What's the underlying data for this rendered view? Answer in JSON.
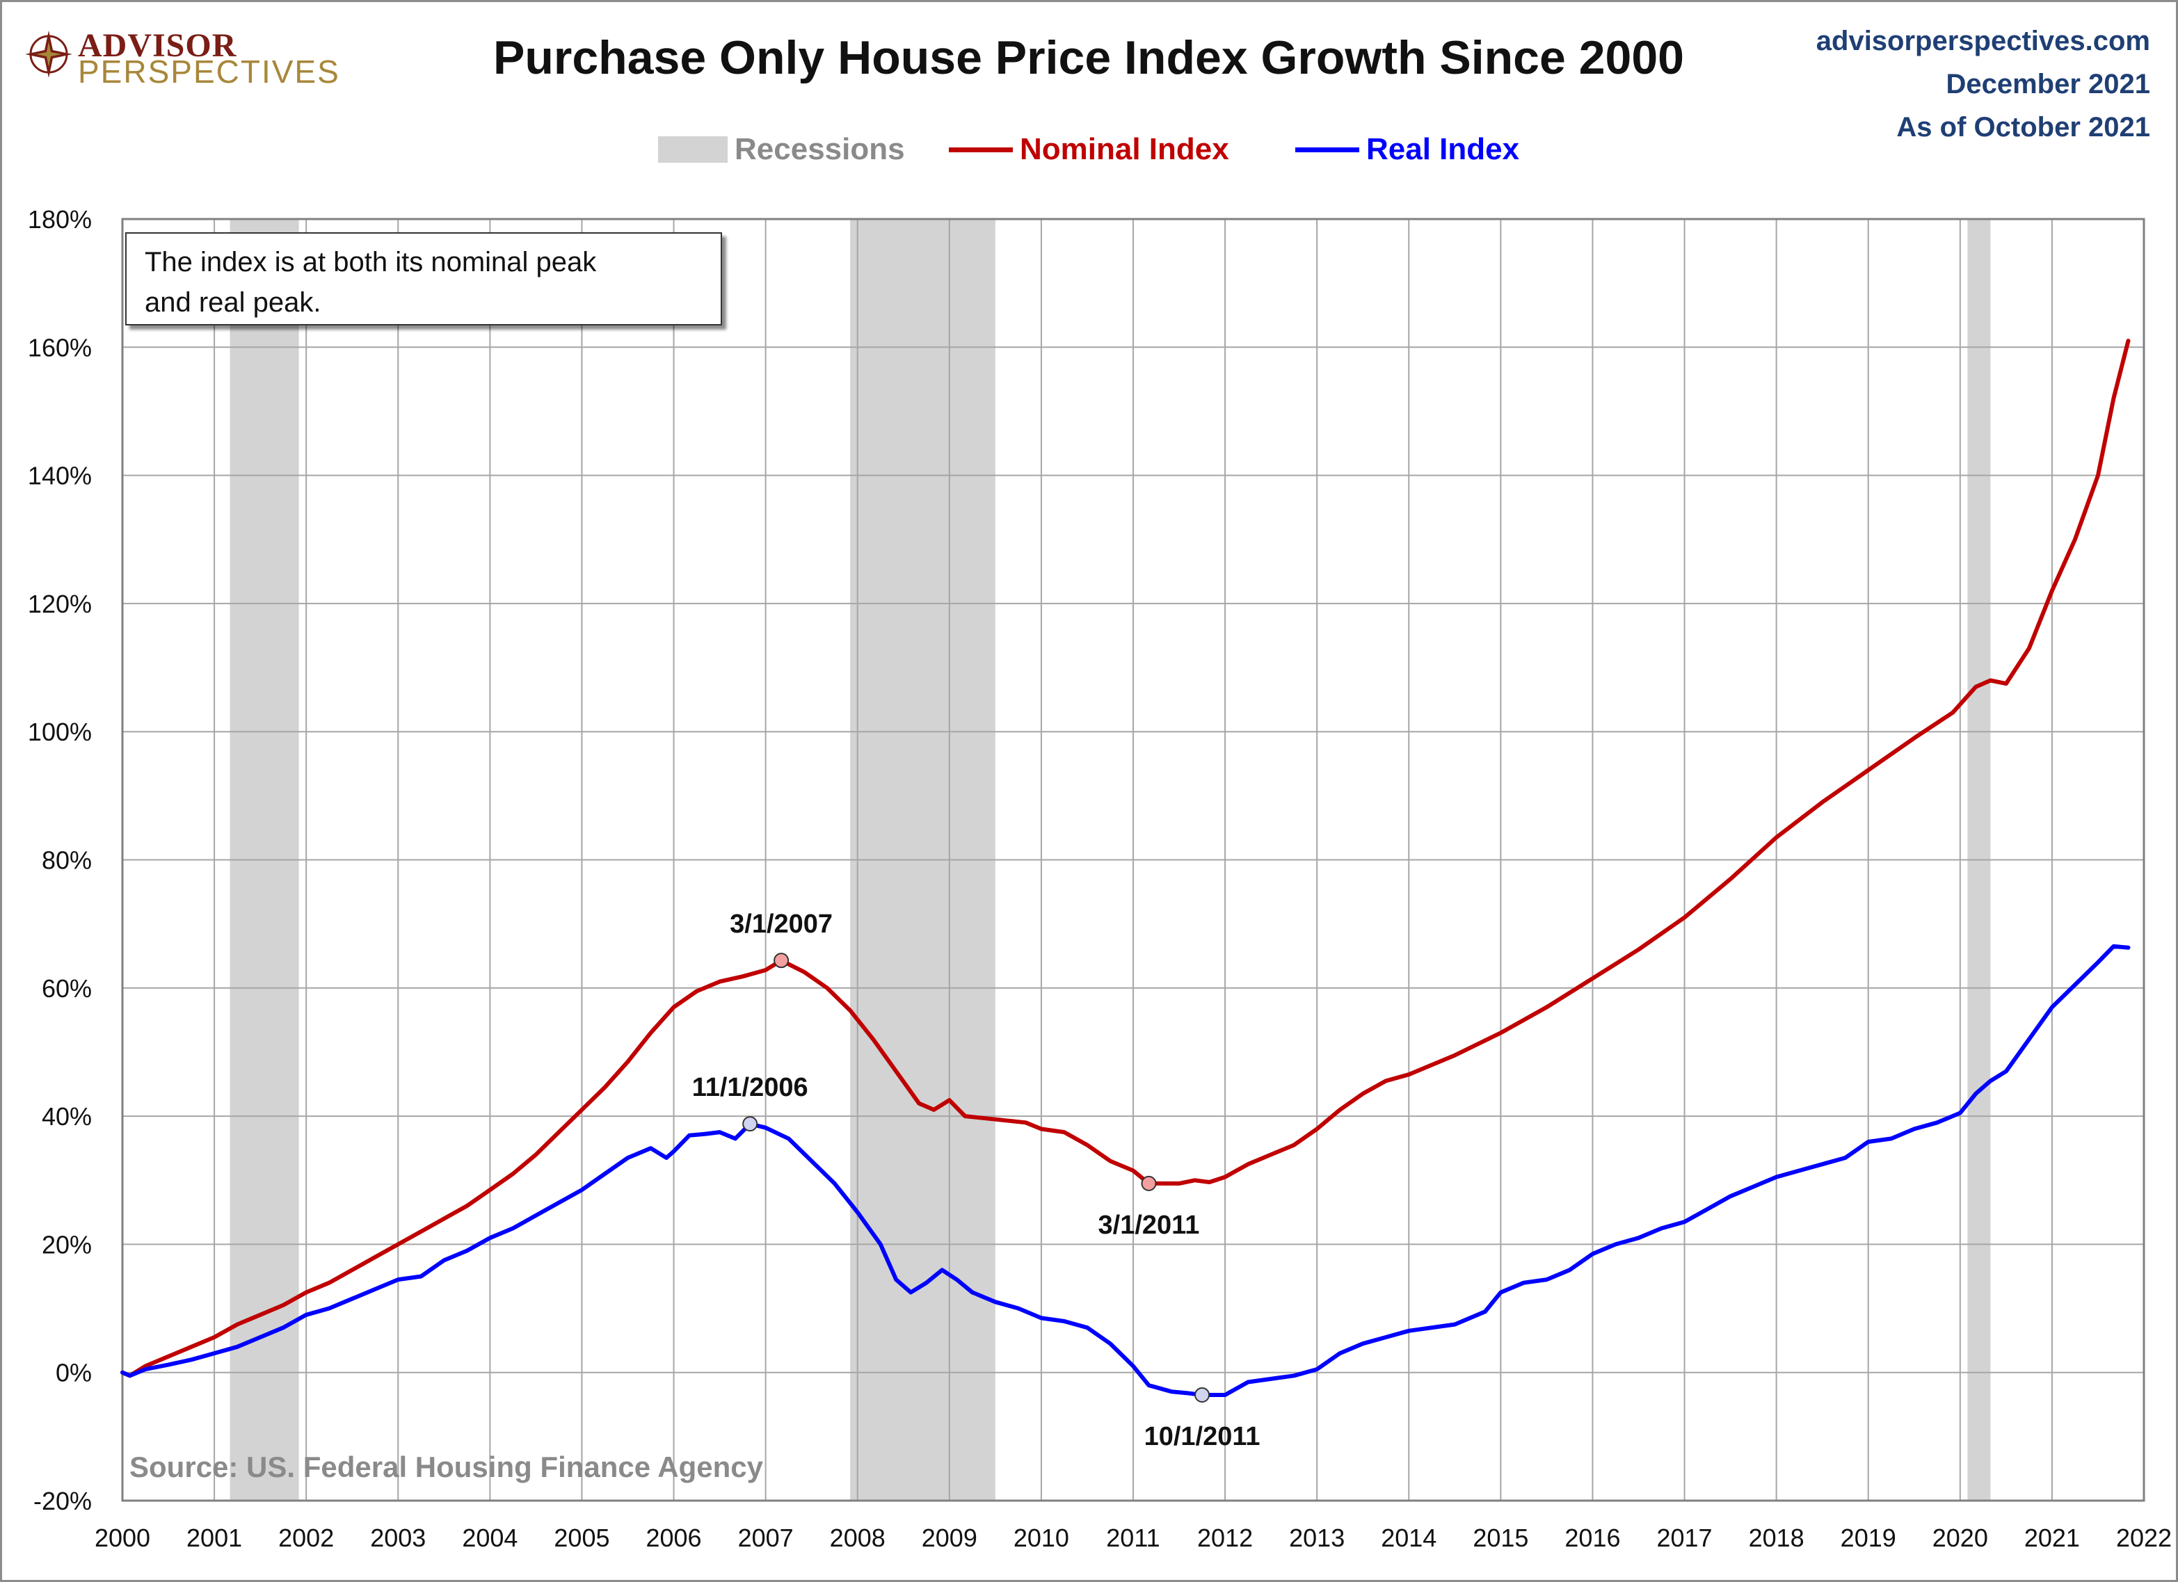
{
  "logo": {
    "top": "ADVISOR",
    "bottom": "PERSPECTIVES"
  },
  "header": {
    "title": "Purchase Only House Price Index Growth Since 2000",
    "site": "advisorperspectives.com",
    "date": "December 2021",
    "as_of": "As of October 2021"
  },
  "colors": {
    "nominal": "#c00000",
    "real": "#0000ff",
    "recession": "#d3d3d3",
    "grid": "#a6a6a6",
    "title_blue": "#1f3f74"
  },
  "note": {
    "line1": "The index is at both its nominal peak",
    "line2": "and real peak."
  },
  "chart_data": {
    "type": "line",
    "title": "Purchase Only House Price Index Growth Since 2000",
    "xlabel": "",
    "ylabel": "",
    "xlim": [
      2000,
      2022
    ],
    "ylim": [
      -20,
      180
    ],
    "y_ticks": [
      -20,
      0,
      20,
      40,
      60,
      80,
      100,
      120,
      140,
      160,
      180
    ],
    "y_tick_labels": [
      "-20%",
      "0%",
      "20%",
      "40%",
      "60%",
      "80%",
      "100%",
      "120%",
      "140%",
      "160%",
      "180%"
    ],
    "x_ticks": [
      2000,
      2001,
      2002,
      2003,
      2004,
      2005,
      2006,
      2007,
      2008,
      2009,
      2010,
      2011,
      2012,
      2013,
      2014,
      2015,
      2016,
      2017,
      2018,
      2019,
      2020,
      2021,
      2022
    ],
    "x_tick_labels": [
      "2000",
      "2001",
      "2002",
      "2003",
      "2004",
      "2005",
      "2006",
      "2007",
      "2008",
      "2009",
      "2010",
      "2011",
      "2012",
      "2013",
      "2014",
      "2015",
      "2016",
      "2017",
      "2018",
      "2019",
      "2020",
      "2021",
      "2022"
    ],
    "grid": true,
    "legend": {
      "placement": "top-center",
      "items": [
        {
          "label": "Recessions",
          "kind": "band"
        },
        {
          "label": "Nominal Index",
          "kind": "line",
          "series": "Nominal Index"
        },
        {
          "label": "Real Index",
          "kind": "line",
          "series": "Real Index"
        }
      ]
    },
    "recessions": [
      [
        2001.17,
        2001.92
      ],
      [
        2007.92,
        2009.5
      ],
      [
        2020.08,
        2020.33
      ]
    ],
    "series": [
      {
        "name": "Nominal Index",
        "points": [
          [
            2000.0,
            0
          ],
          [
            2000.08,
            -0.5
          ],
          [
            2000.25,
            1
          ],
          [
            2000.5,
            2.5
          ],
          [
            2000.75,
            4
          ],
          [
            2001.0,
            5.5
          ],
          [
            2001.25,
            7.5
          ],
          [
            2001.5,
            9
          ],
          [
            2001.75,
            10.5
          ],
          [
            2002.0,
            12.5
          ],
          [
            2002.25,
            14
          ],
          [
            2002.5,
            16
          ],
          [
            2002.75,
            18
          ],
          [
            2003.0,
            20
          ],
          [
            2003.25,
            22
          ],
          [
            2003.5,
            24
          ],
          [
            2003.75,
            26
          ],
          [
            2004.0,
            28.5
          ],
          [
            2004.25,
            31
          ],
          [
            2004.5,
            34
          ],
          [
            2004.75,
            37.5
          ],
          [
            2005.0,
            41
          ],
          [
            2005.25,
            44.5
          ],
          [
            2005.5,
            48.5
          ],
          [
            2005.75,
            53
          ],
          [
            2006.0,
            57
          ],
          [
            2006.25,
            59.5
          ],
          [
            2006.5,
            61
          ],
          [
            2006.75,
            61.8
          ],
          [
            2007.0,
            62.8
          ],
          [
            2007.17,
            64.3
          ],
          [
            2007.42,
            62.5
          ],
          [
            2007.67,
            60
          ],
          [
            2007.92,
            56.5
          ],
          [
            2008.17,
            52
          ],
          [
            2008.42,
            47
          ],
          [
            2008.67,
            42
          ],
          [
            2008.83,
            41
          ],
          [
            2009.0,
            42.5
          ],
          [
            2009.17,
            40
          ],
          [
            2009.5,
            39.5
          ],
          [
            2009.83,
            39
          ],
          [
            2010.0,
            38
          ],
          [
            2010.25,
            37.5
          ],
          [
            2010.5,
            35.5
          ],
          [
            2010.75,
            33
          ],
          [
            2011.0,
            31.5
          ],
          [
            2011.17,
            29.5
          ],
          [
            2011.5,
            29.5
          ],
          [
            2011.67,
            30
          ],
          [
            2011.83,
            29.7
          ],
          [
            2012.0,
            30.5
          ],
          [
            2012.25,
            32.5
          ],
          [
            2012.5,
            34
          ],
          [
            2012.75,
            35.5
          ],
          [
            2013.0,
            38
          ],
          [
            2013.25,
            41
          ],
          [
            2013.5,
            43.5
          ],
          [
            2013.75,
            45.5
          ],
          [
            2014.0,
            46.5
          ],
          [
            2014.5,
            49.5
          ],
          [
            2015.0,
            53
          ],
          [
            2015.5,
            57
          ],
          [
            2016.0,
            61.5
          ],
          [
            2016.5,
            66
          ],
          [
            2017.0,
            71
          ],
          [
            2017.5,
            77
          ],
          [
            2018.0,
            83.5
          ],
          [
            2018.5,
            89
          ],
          [
            2019.0,
            94
          ],
          [
            2019.5,
            99
          ],
          [
            2019.92,
            103
          ],
          [
            2020.17,
            107
          ],
          [
            2020.33,
            108
          ],
          [
            2020.5,
            107.5
          ],
          [
            2020.75,
            113
          ],
          [
            2021.0,
            122
          ],
          [
            2021.25,
            130
          ],
          [
            2021.5,
            140
          ],
          [
            2021.67,
            152
          ],
          [
            2021.83,
            161
          ]
        ]
      },
      {
        "name": "Real Index",
        "points": [
          [
            2000.0,
            0
          ],
          [
            2000.08,
            -0.5
          ],
          [
            2000.25,
            0.5
          ],
          [
            2000.5,
            1.2
          ],
          [
            2000.75,
            2
          ],
          [
            2001.0,
            3
          ],
          [
            2001.25,
            4
          ],
          [
            2001.5,
            5.5
          ],
          [
            2001.75,
            7
          ],
          [
            2002.0,
            9
          ],
          [
            2002.25,
            10
          ],
          [
            2002.5,
            11.5
          ],
          [
            2002.75,
            13
          ],
          [
            2003.0,
            14.5
          ],
          [
            2003.25,
            15
          ],
          [
            2003.5,
            17.5
          ],
          [
            2003.75,
            19
          ],
          [
            2004.0,
            21
          ],
          [
            2004.25,
            22.5
          ],
          [
            2004.5,
            24.5
          ],
          [
            2004.75,
            26.5
          ],
          [
            2005.0,
            28.5
          ],
          [
            2005.25,
            31
          ],
          [
            2005.5,
            33.5
          ],
          [
            2005.75,
            35
          ],
          [
            2005.92,
            33.5
          ],
          [
            2006.0,
            34.5
          ],
          [
            2006.17,
            37
          ],
          [
            2006.33,
            37.2
          ],
          [
            2006.5,
            37.5
          ],
          [
            2006.67,
            36.5
          ],
          [
            2006.83,
            38.8
          ],
          [
            2007.0,
            38.2
          ],
          [
            2007.25,
            36.5
          ],
          [
            2007.5,
            33
          ],
          [
            2007.75,
            29.5
          ],
          [
            2008.0,
            25
          ],
          [
            2008.25,
            20
          ],
          [
            2008.42,
            14.5
          ],
          [
            2008.58,
            12.5
          ],
          [
            2008.75,
            14
          ],
          [
            2008.92,
            16
          ],
          [
            2009.08,
            14.5
          ],
          [
            2009.25,
            12.5
          ],
          [
            2009.5,
            11
          ],
          [
            2009.75,
            10
          ],
          [
            2010.0,
            8.5
          ],
          [
            2010.25,
            8
          ],
          [
            2010.5,
            7
          ],
          [
            2010.75,
            4.5
          ],
          [
            2011.0,
            1
          ],
          [
            2011.17,
            -2
          ],
          [
            2011.42,
            -3
          ],
          [
            2011.58,
            -3.2
          ],
          [
            2011.75,
            -3.5
          ],
          [
            2012.0,
            -3.5
          ],
          [
            2012.25,
            -1.5
          ],
          [
            2012.5,
            -1
          ],
          [
            2012.75,
            -0.5
          ],
          [
            2013.0,
            0.5
          ],
          [
            2013.25,
            3
          ],
          [
            2013.5,
            4.5
          ],
          [
            2013.75,
            5.5
          ],
          [
            2014.0,
            6.5
          ],
          [
            2014.5,
            7.5
          ],
          [
            2014.83,
            9.5
          ],
          [
            2015.0,
            12.5
          ],
          [
            2015.25,
            14
          ],
          [
            2015.5,
            14.5
          ],
          [
            2015.75,
            16
          ],
          [
            2016.0,
            18.5
          ],
          [
            2016.25,
            20
          ],
          [
            2016.5,
            21
          ],
          [
            2016.75,
            22.5
          ],
          [
            2017.0,
            23.5
          ],
          [
            2017.25,
            25.5
          ],
          [
            2017.5,
            27.5
          ],
          [
            2017.75,
            29
          ],
          [
            2018.0,
            30.5
          ],
          [
            2018.25,
            31.5
          ],
          [
            2018.5,
            32.5
          ],
          [
            2018.75,
            33.5
          ],
          [
            2019.0,
            36
          ],
          [
            2019.25,
            36.5
          ],
          [
            2019.5,
            38
          ],
          [
            2019.75,
            39
          ],
          [
            2020.0,
            40.5
          ],
          [
            2020.17,
            43.5
          ],
          [
            2020.33,
            45.5
          ],
          [
            2020.5,
            47
          ],
          [
            2020.75,
            52
          ],
          [
            2021.0,
            57
          ],
          [
            2021.25,
            60.5
          ],
          [
            2021.5,
            64
          ],
          [
            2021.67,
            66.5
          ],
          [
            2021.83,
            66.3
          ]
        ]
      }
    ],
    "annotations": [
      {
        "label": "3/1/2007",
        "x": 2007.17,
        "y": 64.3,
        "series": "Nominal Index",
        "position": "above"
      },
      {
        "label": "11/1/2006",
        "x": 2006.83,
        "y": 38.8,
        "series": "Real Index",
        "position": "above"
      },
      {
        "label": "3/1/2011",
        "x": 2011.17,
        "y": 29.5,
        "series": "Nominal Index",
        "position": "below"
      },
      {
        "label": "10/1/2011",
        "x": 2011.75,
        "y": -3.5,
        "series": "Real Index",
        "position": "below"
      }
    ],
    "source": "Source: US. Federal Housing Finance Agency"
  }
}
